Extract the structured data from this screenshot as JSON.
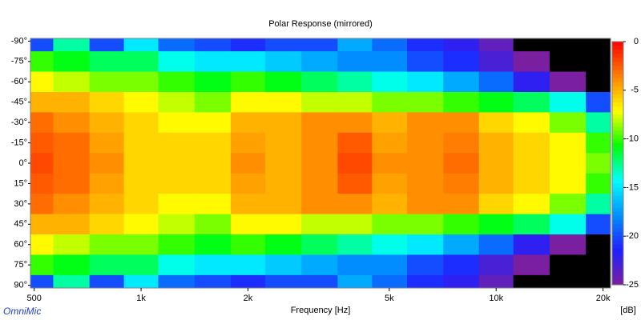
{
  "chart_data": {
    "type": "heatmap",
    "title": "Polar Response (mirrored)",
    "x_label": "Frequency [Hz]",
    "colorbar_label": "[dB]",
    "watermark": "OmniMic",
    "log_x": true,
    "x": [
      500,
      640,
      800,
      1000,
      1250,
      1600,
      2000,
      2500,
      3200,
      4000,
      5000,
      6300,
      8000,
      10000,
      12500,
      16000,
      20000
    ],
    "y": [
      -90,
      -75,
      -60,
      -45,
      -30,
      -15,
      0,
      15,
      30,
      45,
      60,
      75,
      90
    ],
    "z": [
      [
        -20,
        -13,
        -20,
        -15,
        -19,
        -20,
        -21,
        -20,
        -20,
        -17,
        -19,
        -21,
        -22,
        -24,
        -26,
        -30,
        -30
      ],
      [
        -10,
        -11,
        -12,
        -12,
        -14,
        -15,
        -15,
        -16,
        -17,
        -18,
        -18,
        -20,
        -21,
        -23,
        -25,
        -28,
        -30
      ],
      [
        -7,
        -8,
        -9,
        -9,
        -10,
        -11,
        -10,
        -11,
        -12,
        -13,
        -14,
        -15,
        -17,
        -19,
        -22,
        -25,
        -30
      ],
      [
        -5,
        -5,
        -6,
        -7,
        -8,
        -9,
        -7,
        -7,
        -8,
        -8,
        -9,
        -9,
        -10,
        -11,
        -12,
        -14,
        -20
      ],
      [
        -3,
        -4,
        -5,
        -6,
        -7,
        -7,
        -5,
        -5,
        -4,
        -4,
        -5,
        -4,
        -4,
        -6,
        -7,
        -9,
        -13
      ],
      [
        -2.5,
        -3,
        -4.5,
        -6,
        -6,
        -6,
        -4.5,
        -5,
        -4,
        -2.5,
        -4.5,
        -4,
        -3.5,
        -5,
        -6,
        -7,
        -10
      ],
      [
        -2,
        -3,
        -4,
        -6,
        -6,
        -6,
        -4,
        -5,
        -4,
        -2,
        -4,
        -4,
        -3,
        -5,
        -6,
        -7,
        -9
      ],
      [
        -2.5,
        -3,
        -4.5,
        -6,
        -6,
        -6,
        -4.5,
        -5,
        -4,
        -2.5,
        -4.5,
        -4,
        -3.5,
        -5,
        -6,
        -7,
        -10
      ],
      [
        -3,
        -4,
        -5,
        -6,
        -7,
        -7,
        -5,
        -5,
        -4,
        -4,
        -5,
        -4,
        -4,
        -6,
        -7,
        -9,
        -13
      ],
      [
        -5,
        -5,
        -6,
        -7,
        -8,
        -9,
        -7,
        -7,
        -8,
        -8,
        -9,
        -9,
        -10,
        -11,
        -12,
        -14,
        -20
      ],
      [
        -7,
        -8,
        -9,
        -9,
        -10,
        -11,
        -10,
        -11,
        -12,
        -13,
        -14,
        -15,
        -17,
        -19,
        -22,
        -25,
        -30
      ],
      [
        -10,
        -11,
        -12,
        -12,
        -14,
        -15,
        -15,
        -16,
        -17,
        -18,
        -18,
        -20,
        -21,
        -23,
        -25,
        -28,
        -30
      ],
      [
        -20,
        -13,
        -20,
        -15,
        -19,
        -20,
        -21,
        -20,
        -20,
        -17,
        -19,
        -21,
        -22,
        -24,
        -26,
        -30,
        -30
      ]
    ],
    "xlim": [
      488,
      21000
    ],
    "ylim": [
      -92,
      92
    ],
    "zlim": [
      -25,
      0
    ],
    "xticks": [
      500,
      {
        "value": 1000,
        "label": "1k"
      },
      {
        "value": 2000,
        "label": "2k"
      },
      {
        "value": 5000,
        "label": "5k"
      },
      {
        "value": 10000,
        "label": "10k"
      },
      {
        "value": 20000,
        "label": "20k"
      }
    ],
    "yticks": [
      {
        "value": -90,
        "label": "-90°"
      },
      {
        "value": -75,
        "label": "-75°"
      },
      {
        "value": -60,
        "label": "-60°"
      },
      {
        "value": -45,
        "label": "-45°"
      },
      {
        "value": -30,
        "label": "-30°"
      },
      {
        "value": -15,
        "label": "-15°"
      },
      {
        "value": 0,
        "label": "0°"
      },
      {
        "value": 15,
        "label": "15°"
      },
      {
        "value": 30,
        "label": "30°"
      },
      {
        "value": 45,
        "label": "45°"
      },
      {
        "value": 60,
        "label": "60°"
      },
      {
        "value": 75,
        "label": "75°"
      },
      {
        "value": 90,
        "label": "90°"
      }
    ],
    "zticks": [
      0,
      -5,
      -10,
      -15,
      -20,
      -25
    ],
    "colormap": [
      "#7a1fa0",
      "#2020ff",
      "#0090ff",
      "#00ffff",
      "#00ff00",
      "#ffff00",
      "#ff8000",
      "#ff0000"
    ],
    "below_color": "#000000"
  }
}
